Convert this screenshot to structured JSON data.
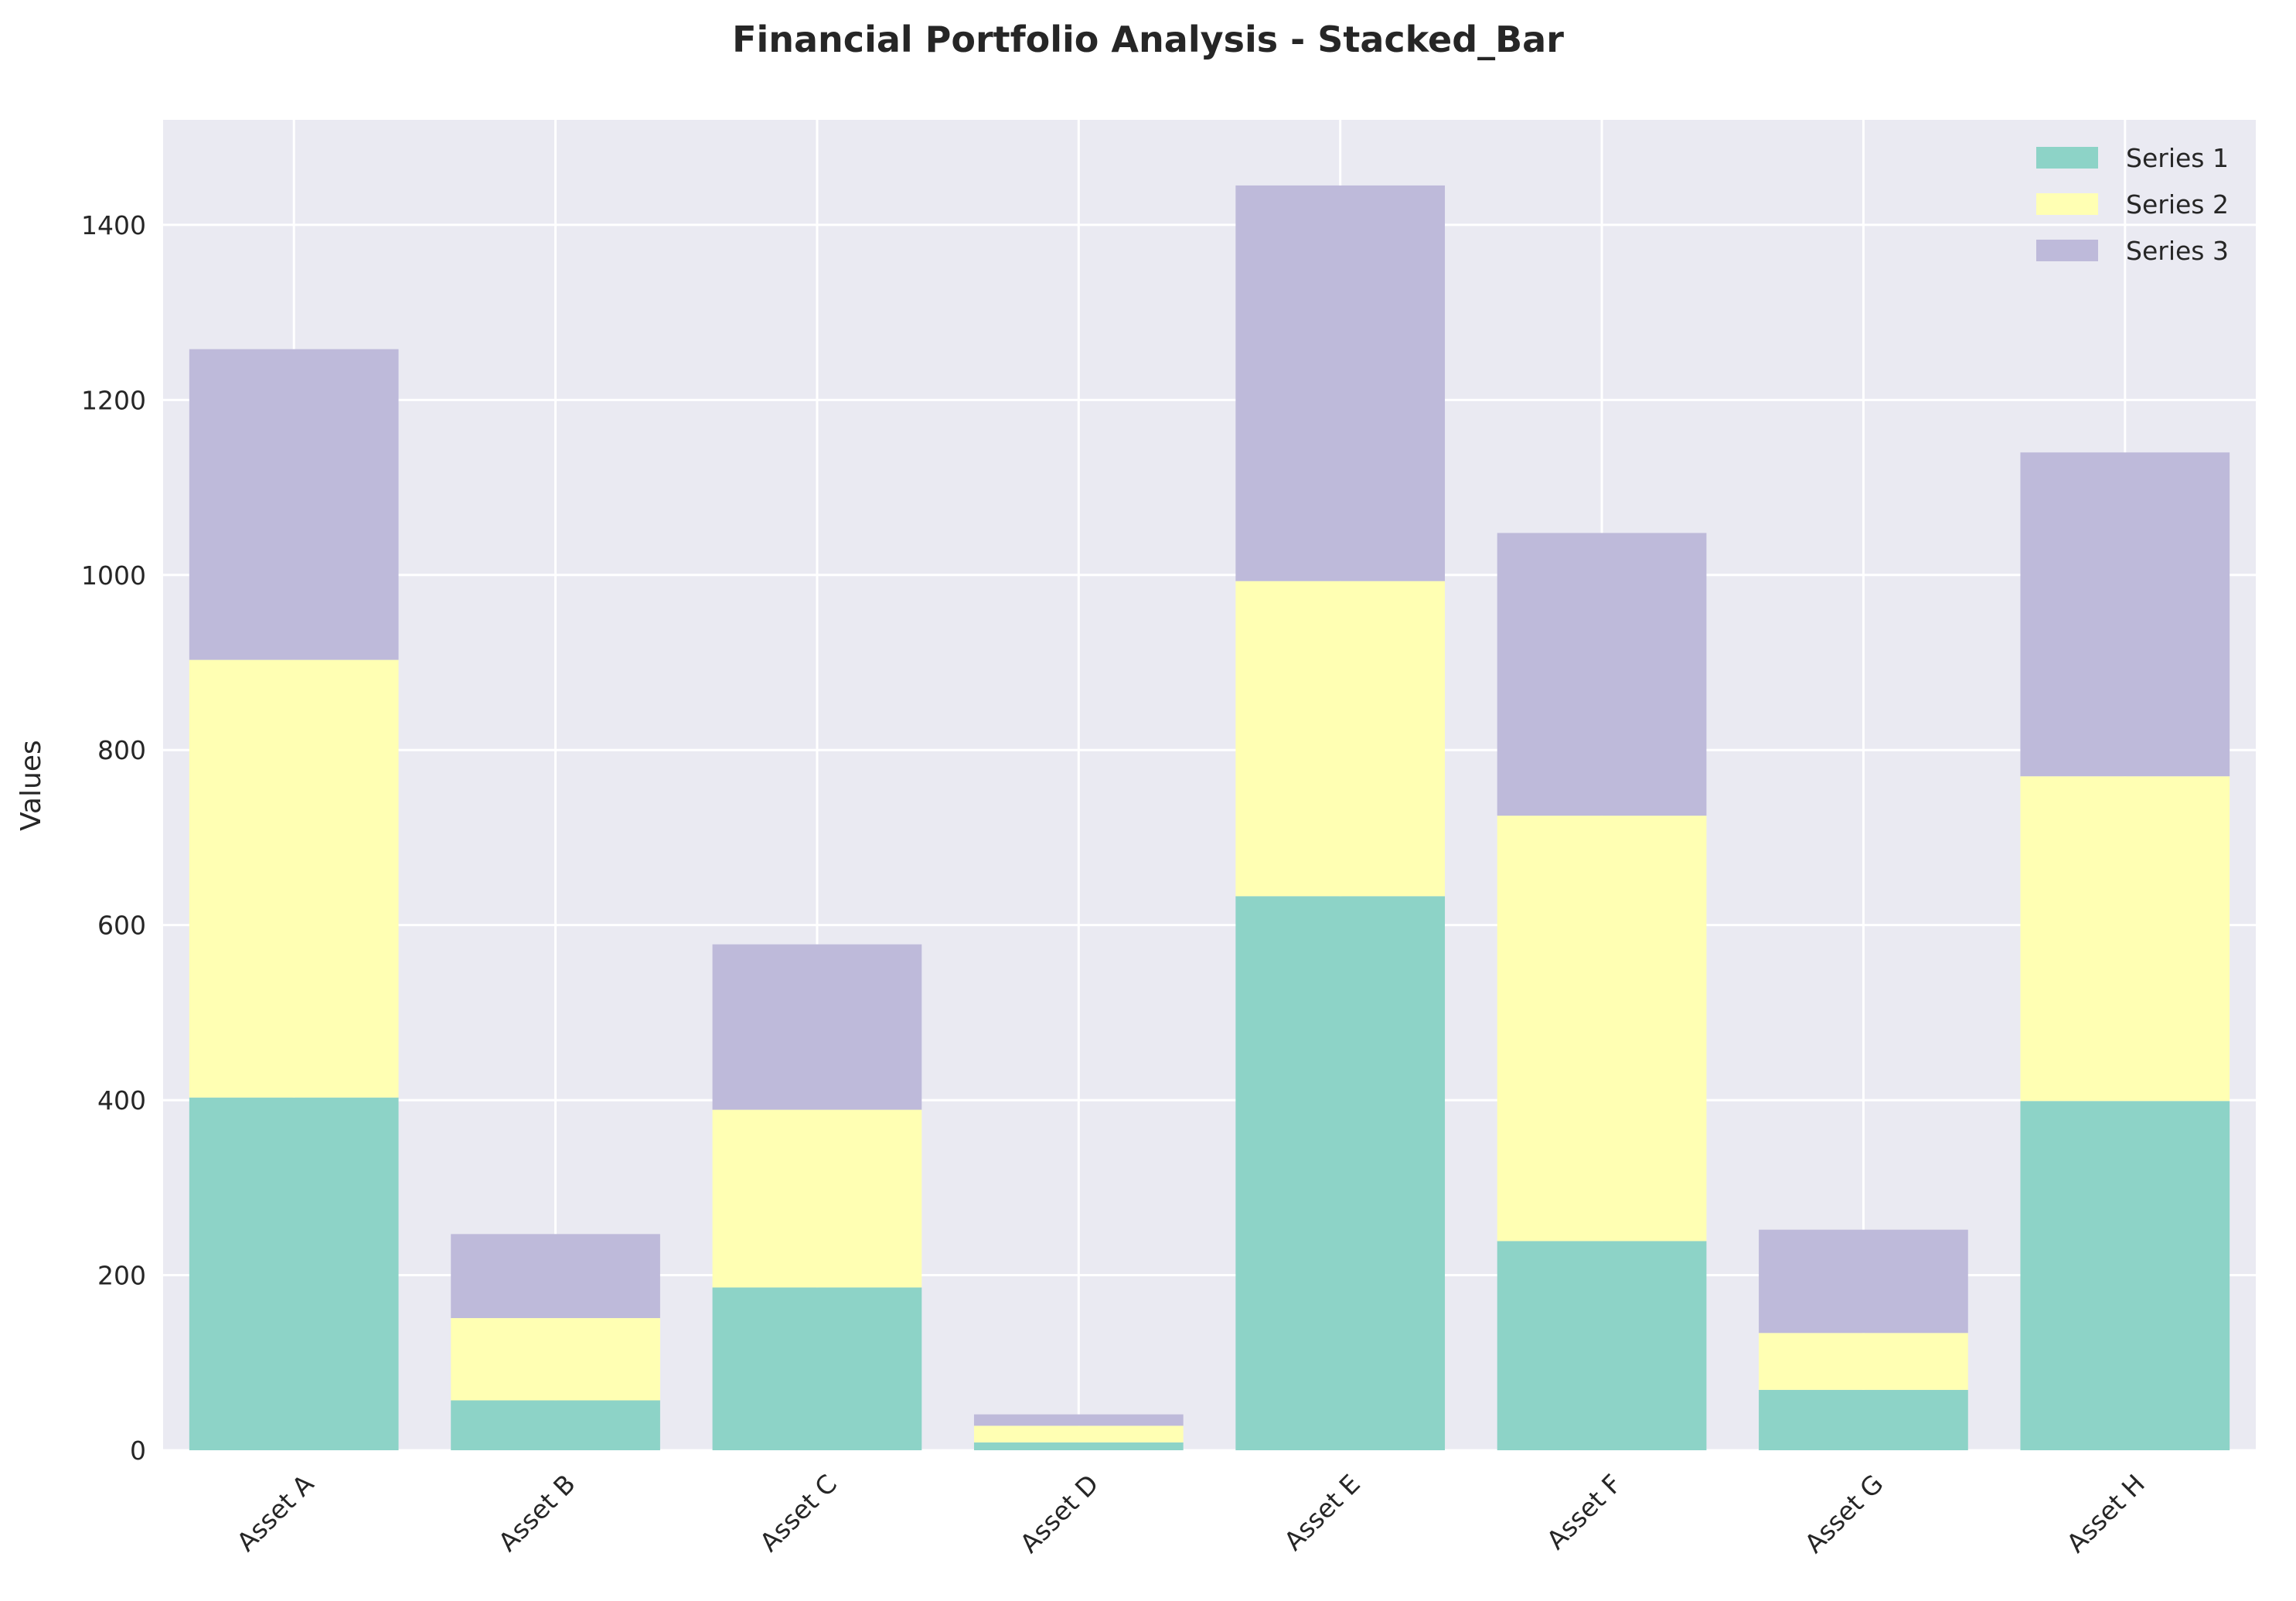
{
  "chart_data": {
    "type": "bar",
    "stacked": true,
    "title": "Financial Portfolio Analysis - Stacked_Bar",
    "xlabel": "",
    "ylabel": "Values",
    "categories": [
      "Asset A",
      "Asset B",
      "Asset C",
      "Asset D",
      "Asset E",
      "Asset F",
      "Asset G",
      "Asset H"
    ],
    "series": [
      {
        "name": "Series 1",
        "color": "#8dd3c7",
        "values": [
          403,
          57,
          186,
          9,
          633,
          239,
          69,
          399
        ]
      },
      {
        "name": "Series 2",
        "color": "#ffffb3",
        "values": [
          500,
          94,
          203,
          19,
          360,
          486,
          65,
          371
        ]
      },
      {
        "name": "Series 3",
        "color": "#bebada",
        "values": [
          355,
          96,
          189,
          13,
          452,
          323,
          118,
          370
        ]
      }
    ],
    "ylim": [
      0,
      1520
    ],
    "yticks": [
      0,
      200,
      400,
      600,
      800,
      1000,
      1200,
      1400
    ],
    "grid": true,
    "legend_position": "top-right",
    "background": "#eaeaf2",
    "grid_color": "#ffffff"
  }
}
